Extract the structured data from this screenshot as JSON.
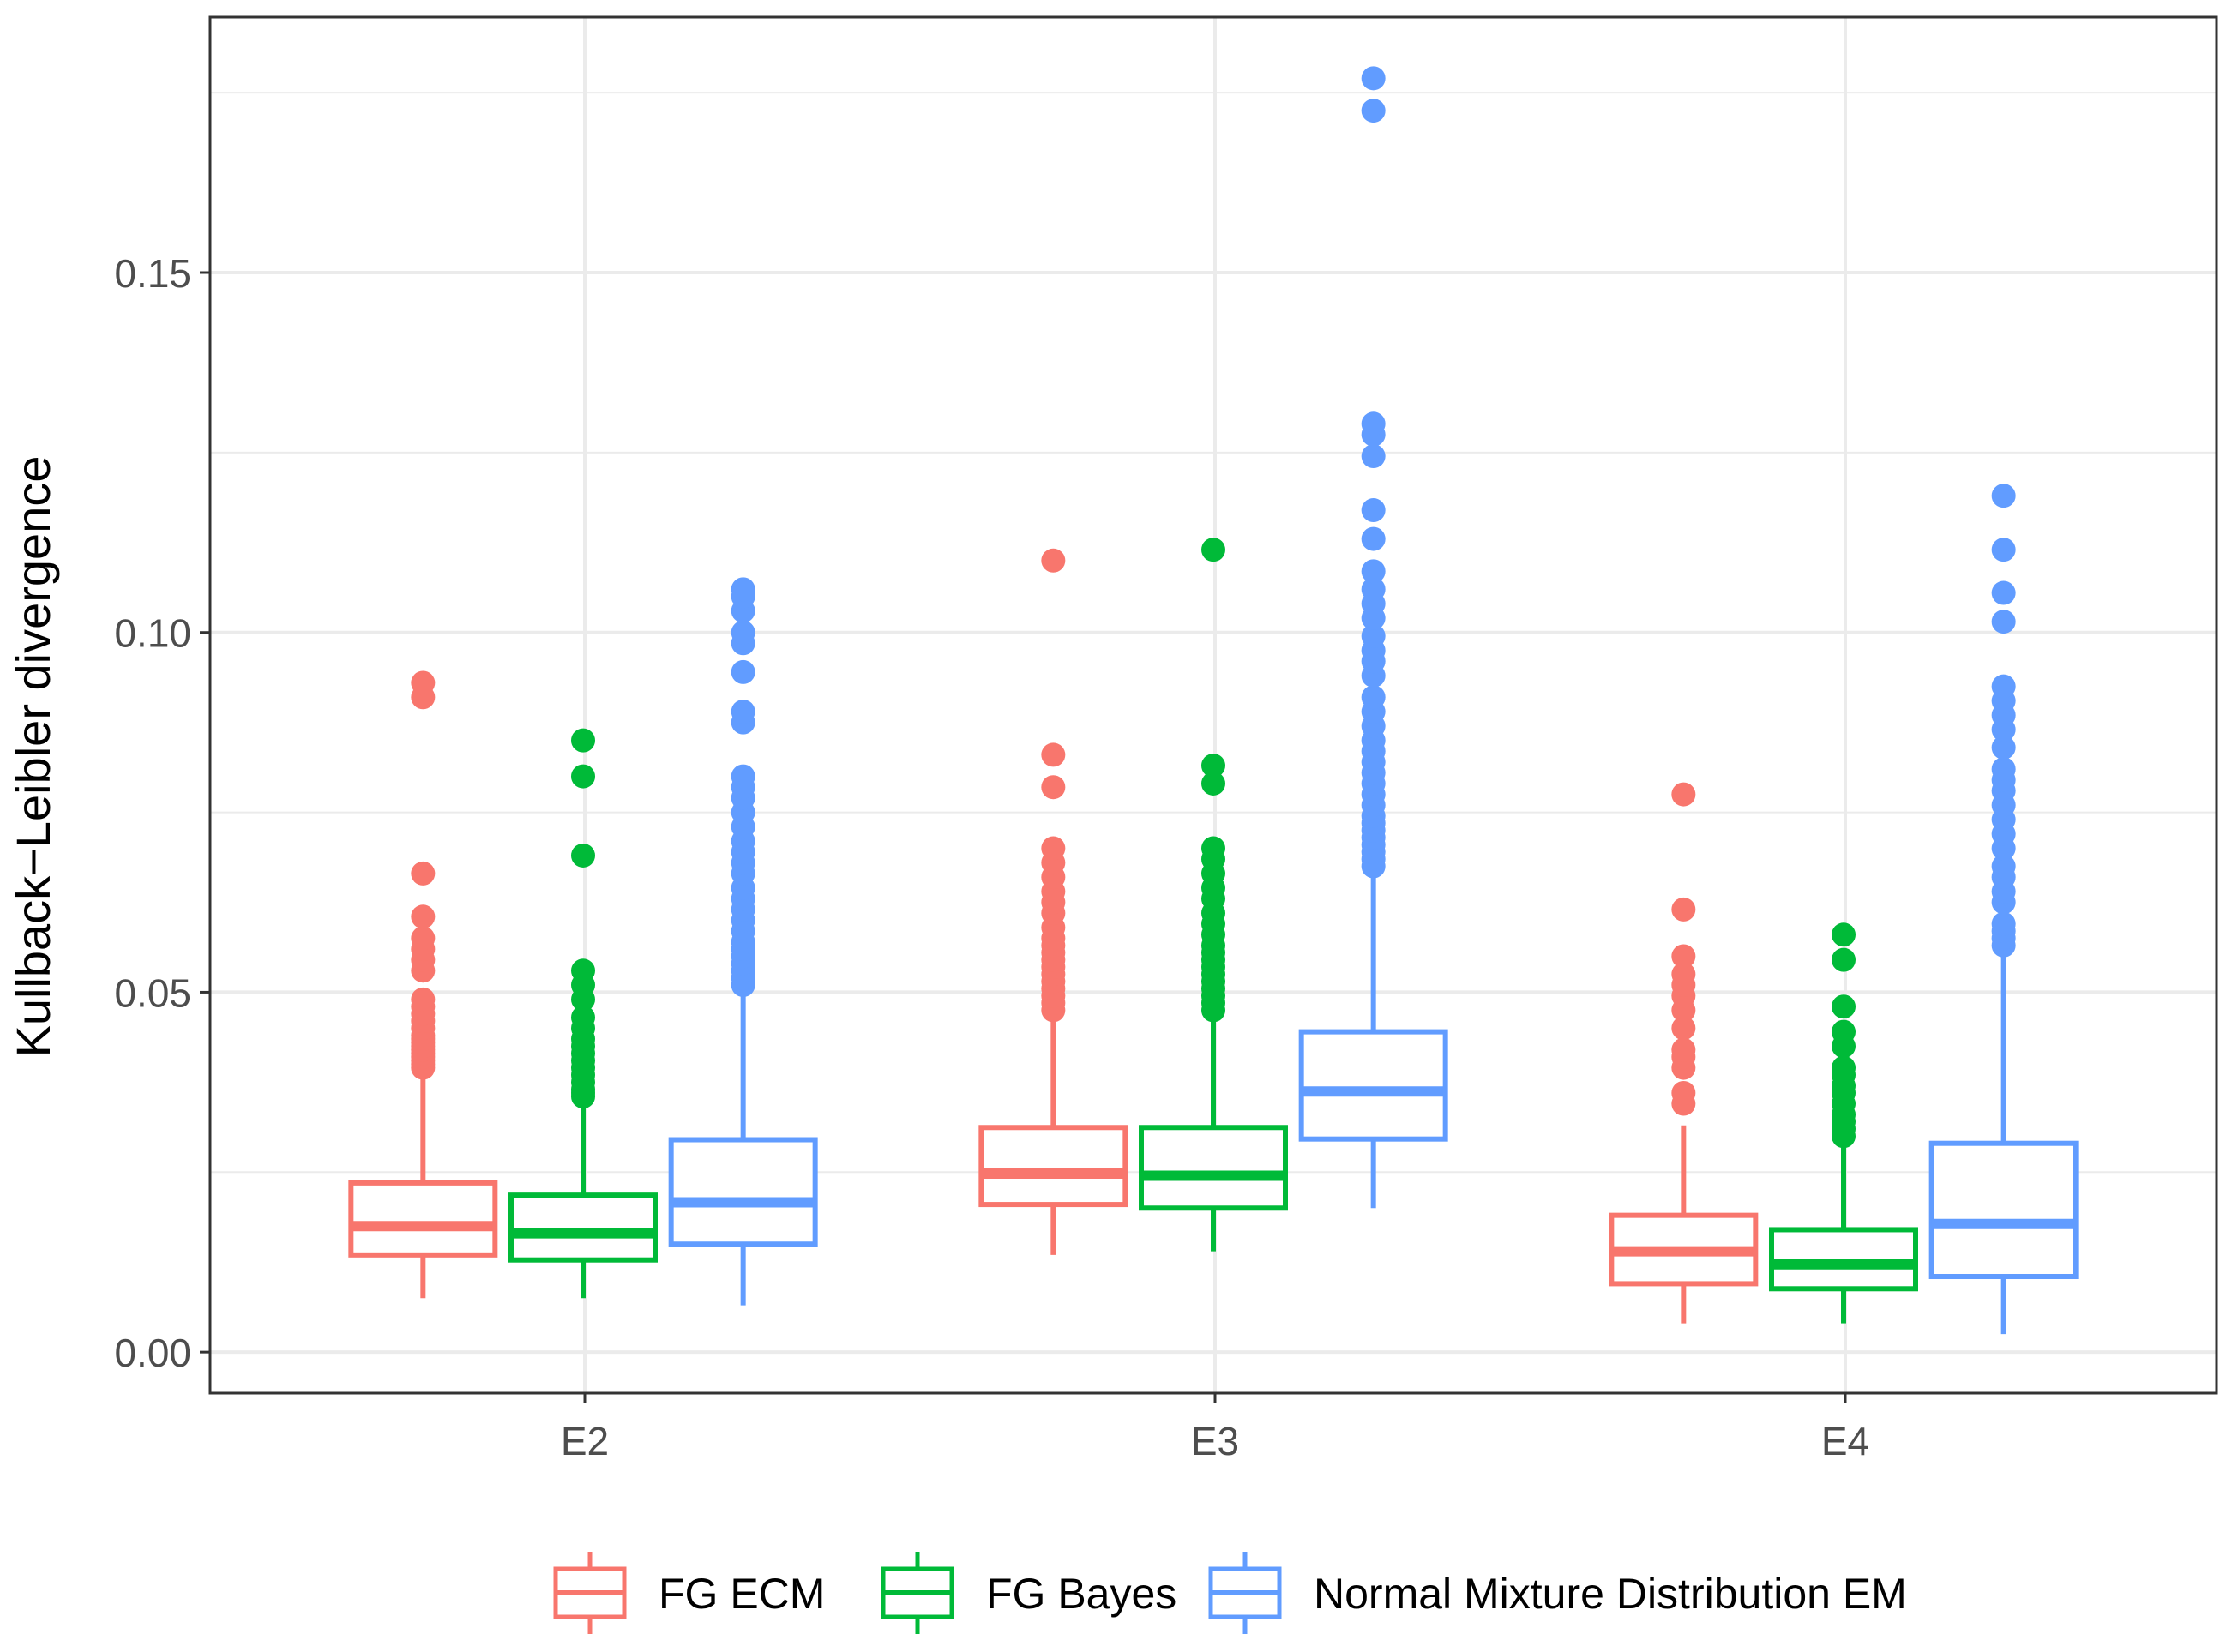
{
  "chart_data": {
    "type": "boxplot",
    "xlabel": "",
    "ylabel": "Kullback−Leibler divergence",
    "ylim": [
      -0.0057,
      0.1855
    ],
    "yticks": [
      0.0,
      0.05,
      0.1,
      0.15
    ],
    "ytick_labels": [
      "0.00",
      "0.05",
      "0.10",
      "0.15"
    ],
    "categories": [
      "E2",
      "E3",
      "E4"
    ],
    "grid": true,
    "legend_position": "bottom",
    "series": [
      {
        "name": "FG ECM",
        "color": "#F8766D",
        "boxes": [
          {
            "category": "E2",
            "whisker_low": 0.0075,
            "q1": 0.0135,
            "median": 0.0175,
            "q3": 0.0235,
            "whisker_high": 0.0385,
            "outliers": [
              0.0395,
              0.04,
              0.0405,
              0.041,
              0.0415,
              0.042,
              0.0425,
              0.043,
              0.0435,
              0.044,
              0.045,
              0.046,
              0.047,
              0.048,
              0.049,
              0.053,
              0.0545,
              0.056,
              0.0575,
              0.0605,
              0.0665,
              0.091,
              0.093
            ]
          },
          {
            "category": "E3",
            "whisker_low": 0.0135,
            "q1": 0.0205,
            "median": 0.0248,
            "q3": 0.0312,
            "whisker_high": 0.0465,
            "outliers": [
              0.0475,
              0.0485,
              0.0495,
              0.0505,
              0.0515,
              0.0525,
              0.0535,
              0.0545,
              0.0555,
              0.0565,
              0.0575,
              0.059,
              0.061,
              0.0625,
              0.064,
              0.066,
              0.068,
              0.07,
              0.0785,
              0.083,
              0.11
            ]
          },
          {
            "category": "E4",
            "whisker_low": 0.004,
            "q1": 0.0095,
            "median": 0.014,
            "q3": 0.019,
            "whisker_high": 0.0315,
            "outliers": [
              0.0345,
              0.036,
              0.0395,
              0.041,
              0.042,
              0.045,
              0.0475,
              0.0495,
              0.051,
              0.0525,
              0.055,
              0.0615,
              0.0775
            ]
          }
        ]
      },
      {
        "name": "FG Bayes",
        "color": "#00BA38",
        "boxes": [
          {
            "category": "E2",
            "whisker_low": 0.0075,
            "q1": 0.0128,
            "median": 0.0165,
            "q3": 0.0218,
            "whisker_high": 0.0345,
            "outliers": [
              0.0355,
              0.036,
              0.0365,
              0.0375,
              0.0385,
              0.0395,
              0.0405,
              0.0415,
              0.0425,
              0.0435,
              0.045,
              0.0465,
              0.049,
              0.051,
              0.053,
              0.069,
              0.08,
              0.085
            ]
          },
          {
            "category": "E3",
            "whisker_low": 0.014,
            "q1": 0.02,
            "median": 0.0245,
            "q3": 0.0312,
            "whisker_high": 0.0465,
            "outliers": [
              0.0475,
              0.0485,
              0.0495,
              0.0505,
              0.0515,
              0.0525,
              0.0535,
              0.0545,
              0.0555,
              0.0565,
              0.058,
              0.0595,
              0.061,
              0.063,
              0.0645,
              0.0665,
              0.0685,
              0.07,
              0.079,
              0.0815,
              0.1115
            ]
          },
          {
            "category": "E4",
            "whisker_low": 0.004,
            "q1": 0.0088,
            "median": 0.0122,
            "q3": 0.017,
            "whisker_high": 0.029,
            "outliers": [
              0.03,
              0.031,
              0.032,
              0.033,
              0.0345,
              0.036,
              0.037,
              0.0385,
              0.0395,
              0.0425,
              0.0445,
              0.048,
              0.0545,
              0.058
            ]
          }
        ]
      },
      {
        "name": "Normal Mixture Distribution EM",
        "color": "#619CFF",
        "boxes": [
          {
            "category": "E2",
            "whisker_low": 0.0065,
            "q1": 0.015,
            "median": 0.0208,
            "q3": 0.0295,
            "whisker_high": 0.05,
            "outliers": [
              0.051,
              0.052,
              0.053,
              0.054,
              0.055,
              0.056,
              0.057,
              0.0585,
              0.06,
              0.0615,
              0.063,
              0.0645,
              0.0665,
              0.068,
              0.0695,
              0.071,
              0.073,
              0.075,
              0.077,
              0.0785,
              0.08,
              0.0875,
              0.089,
              0.0945,
              0.0985,
              0.1,
              0.103,
              0.105,
              0.106
            ]
          },
          {
            "category": "E3",
            "whisker_low": 0.02,
            "q1": 0.0296,
            "median": 0.0362,
            "q3": 0.0445,
            "whisker_high": 0.0665,
            "outliers": [
              0.0675,
              0.0685,
              0.0695,
              0.0705,
              0.0715,
              0.0725,
              0.0735,
              0.0745,
              0.076,
              0.0775,
              0.079,
              0.0805,
              0.082,
              0.0835,
              0.085,
              0.087,
              0.089,
              0.091,
              0.094,
              0.096,
              0.0975,
              0.0995,
              0.102,
              0.104,
              0.106,
              0.1085,
              0.113,
              0.117,
              0.1245,
              0.1275,
              0.129,
              0.1725,
              0.177
            ]
          },
          {
            "category": "E4",
            "whisker_low": 0.0025,
            "q1": 0.0105,
            "median": 0.0178,
            "q3": 0.029,
            "whisker_high": 0.0555,
            "outliers": [
              0.0565,
              0.0575,
              0.0585,
              0.0595,
              0.0625,
              0.064,
              0.066,
              0.0675,
              0.07,
              0.072,
              0.074,
              0.076,
              0.078,
              0.0795,
              0.081,
              0.084,
              0.0865,
              0.0885,
              0.0905,
              0.0925,
              0.1015,
              0.1055,
              0.1115,
              0.119
            ]
          }
        ]
      }
    ]
  }
}
